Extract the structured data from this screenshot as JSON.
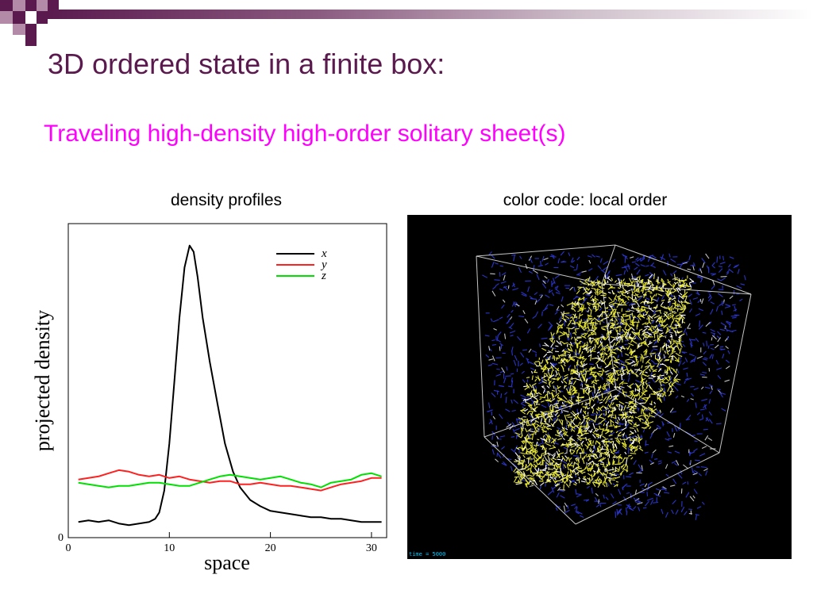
{
  "slide": {
    "title": "3D ordered state in a finite box:",
    "subtitle": "Traveling high-density high-order solitary sheet(s)",
    "left_caption": "density profiles",
    "right_caption": "color code: local order",
    "accent_color": "#5a1a4e",
    "subtitle_color": "#ff00ff"
  },
  "simulation": {
    "time_label": "time = 5000",
    "ordered_color": "#e6e632",
    "disordered_color": "#2a35c8",
    "box_color": "#e8e8e8"
  },
  "chart_data": {
    "type": "line",
    "xlabel": "space",
    "ylabel": "projected density",
    "xlim": [
      0,
      31.5
    ],
    "ylim": [
      0,
      1.0
    ],
    "x_ticks": [
      0,
      10,
      20,
      30
    ],
    "y_ticks": [
      0
    ],
    "legend_position": "top-right",
    "series": [
      {
        "name": "x",
        "color": "#000000",
        "points": [
          [
            1,
            0.05
          ],
          [
            2,
            0.055
          ],
          [
            3,
            0.05
          ],
          [
            4,
            0.055
          ],
          [
            5,
            0.045
          ],
          [
            6,
            0.04
          ],
          [
            7,
            0.045
          ],
          [
            8,
            0.05
          ],
          [
            8.6,
            0.06
          ],
          [
            9,
            0.08
          ],
          [
            9.5,
            0.15
          ],
          [
            10,
            0.3
          ],
          [
            10.5,
            0.5
          ],
          [
            11,
            0.7
          ],
          [
            11.5,
            0.86
          ],
          [
            12,
            0.93
          ],
          [
            12.4,
            0.91
          ],
          [
            12.8,
            0.83
          ],
          [
            13.3,
            0.7
          ],
          [
            14,
            0.56
          ],
          [
            14.8,
            0.42
          ],
          [
            15.5,
            0.3
          ],
          [
            16.3,
            0.21
          ],
          [
            17,
            0.16
          ],
          [
            18,
            0.12
          ],
          [
            19,
            0.1
          ],
          [
            20,
            0.085
          ],
          [
            21,
            0.08
          ],
          [
            22,
            0.075
          ],
          [
            23,
            0.07
          ],
          [
            24,
            0.065
          ],
          [
            25,
            0.065
          ],
          [
            26,
            0.06
          ],
          [
            27,
            0.06
          ],
          [
            28,
            0.055
          ],
          [
            29,
            0.05
          ],
          [
            30,
            0.05
          ],
          [
            31,
            0.05
          ]
        ]
      },
      {
        "name": "y",
        "color": "#ff2020",
        "points": [
          [
            1,
            0.185
          ],
          [
            2,
            0.19
          ],
          [
            3,
            0.195
          ],
          [
            4,
            0.205
          ],
          [
            5,
            0.215
          ],
          [
            6,
            0.21
          ],
          [
            7,
            0.2
          ],
          [
            8,
            0.195
          ],
          [
            9,
            0.2
          ],
          [
            10,
            0.19
          ],
          [
            11,
            0.195
          ],
          [
            12,
            0.185
          ],
          [
            13,
            0.18
          ],
          [
            14,
            0.175
          ],
          [
            15,
            0.18
          ],
          [
            16,
            0.18
          ],
          [
            17,
            0.17
          ],
          [
            18,
            0.17
          ],
          [
            19,
            0.175
          ],
          [
            20,
            0.17
          ],
          [
            21,
            0.165
          ],
          [
            22,
            0.165
          ],
          [
            23,
            0.16
          ],
          [
            24,
            0.155
          ],
          [
            25,
            0.15
          ],
          [
            26,
            0.16
          ],
          [
            27,
            0.17
          ],
          [
            28,
            0.175
          ],
          [
            29,
            0.18
          ],
          [
            30,
            0.19
          ],
          [
            31,
            0.19
          ]
        ]
      },
      {
        "name": "z",
        "color": "#00e000",
        "points": [
          [
            1,
            0.175
          ],
          [
            2,
            0.17
          ],
          [
            3,
            0.165
          ],
          [
            4,
            0.16
          ],
          [
            5,
            0.165
          ],
          [
            6,
            0.165
          ],
          [
            7,
            0.17
          ],
          [
            8,
            0.175
          ],
          [
            9,
            0.175
          ],
          [
            10,
            0.17
          ],
          [
            11,
            0.165
          ],
          [
            12,
            0.165
          ],
          [
            13,
            0.175
          ],
          [
            14,
            0.185
          ],
          [
            15,
            0.195
          ],
          [
            16,
            0.2
          ],
          [
            17,
            0.195
          ],
          [
            18,
            0.19
          ],
          [
            19,
            0.185
          ],
          [
            20,
            0.19
          ],
          [
            21,
            0.195
          ],
          [
            22,
            0.185
          ],
          [
            23,
            0.175
          ],
          [
            24,
            0.17
          ],
          [
            25,
            0.16
          ],
          [
            26,
            0.175
          ],
          [
            27,
            0.18
          ],
          [
            28,
            0.185
          ],
          [
            29,
            0.2
          ],
          [
            30,
            0.205
          ],
          [
            31,
            0.195
          ]
        ]
      }
    ]
  }
}
